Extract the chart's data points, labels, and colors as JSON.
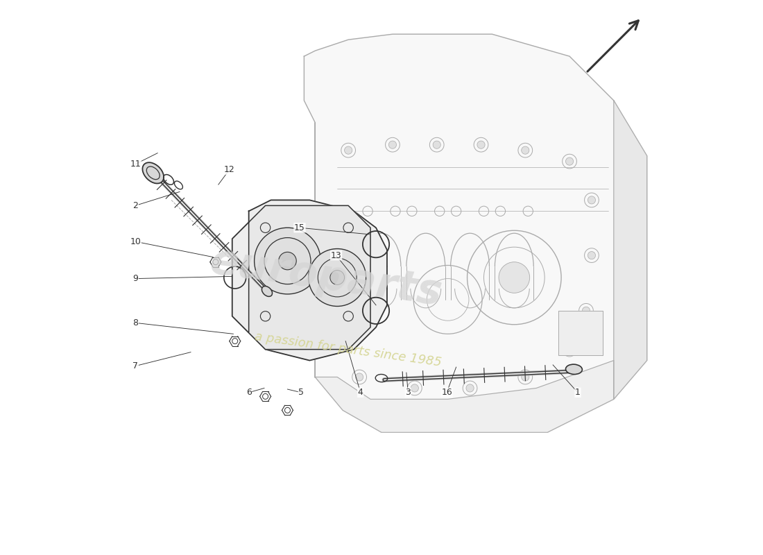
{
  "background_color": "#ffffff",
  "line_color": "#333333",
  "light_line_color": "#aaaaaa",
  "watermark_color": "#cccccc",
  "watermark_yellow": "#e8e8a0",
  "arrow_color": "#333333",
  "part_numbers": [
    1,
    2,
    3,
    4,
    5,
    6,
    7,
    8,
    9,
    10,
    11,
    12,
    13,
    15,
    16
  ],
  "watermark_text": "europarts",
  "watermark_subtext": "a passion for parts since 1985"
}
